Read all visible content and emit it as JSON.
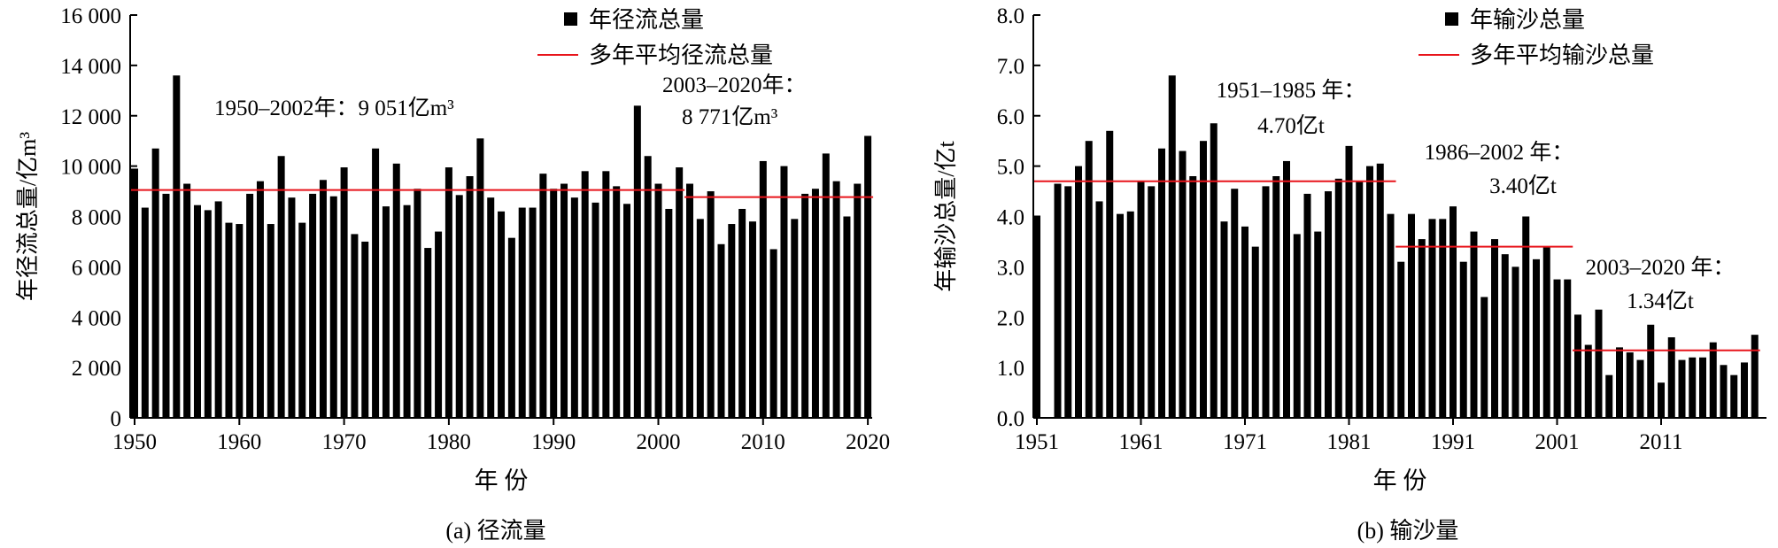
{
  "chart_data": [
    {
      "type": "bar",
      "caption": "(a) 径流量",
      "xlabel": "年 份",
      "ylabel": "年径流总量/亿m³",
      "ylim": [
        0,
        16000
      ],
      "yticks": [
        "0",
        "2 000",
        "4 000",
        "6 000",
        "8 000",
        "10 000",
        "12 000",
        "14 000",
        "16 000"
      ],
      "ytick_values": [
        0,
        2000,
        4000,
        6000,
        8000,
        10000,
        12000,
        14000,
        16000
      ],
      "xticks": [
        1950,
        1960,
        1970,
        1980,
        1990,
        2000,
        2010,
        2020
      ],
      "grid": false,
      "legend_placement": "top-right",
      "legend": {
        "bars": "年径流总量",
        "line": "多年平均径流总量"
      },
      "colors": {
        "bars": "#000000",
        "mean_line": "#e8141b"
      },
      "x": [
        1950,
        1951,
        1952,
        1953,
        1954,
        1955,
        1956,
        1957,
        1958,
        1959,
        1960,
        1961,
        1962,
        1963,
        1964,
        1965,
        1966,
        1967,
        1968,
        1969,
        1970,
        1971,
        1972,
        1973,
        1974,
        1975,
        1976,
        1977,
        1978,
        1979,
        1980,
        1981,
        1982,
        1983,
        1984,
        1985,
        1986,
        1987,
        1988,
        1989,
        1990,
        1991,
        1992,
        1993,
        1994,
        1995,
        1996,
        1997,
        1998,
        1999,
        2000,
        2001,
        2002,
        2003,
        2004,
        2005,
        2006,
        2007,
        2008,
        2009,
        2010,
        2011,
        2012,
        2013,
        2014,
        2015,
        2016,
        2017,
        2018,
        2019,
        2020
      ],
      "values": [
        9900,
        8350,
        10700,
        8900,
        13600,
        9300,
        8450,
        8250,
        8600,
        7750,
        7700,
        8900,
        9400,
        7700,
        10400,
        8750,
        7750,
        8900,
        9450,
        8800,
        9950,
        7300,
        7000,
        10700,
        8400,
        10100,
        8450,
        9100,
        6750,
        7400,
        9950,
        8850,
        9600,
        11100,
        8750,
        8200,
        7150,
        8350,
        8350,
        9700,
        9100,
        9300,
        8750,
        9800,
        8550,
        9800,
        9200,
        8500,
        12400,
        10400,
        9300,
        8300,
        9950,
        9300,
        7900,
        9000,
        6900,
        7700,
        8300,
        7800,
        10200,
        6700,
        10000,
        7900,
        8900,
        9100,
        10500,
        9400,
        8000,
        9300,
        11200
      ],
      "means": [
        {
          "from": 1950,
          "to": 2002,
          "value": 9051,
          "label1": "1950–2002年：9 051亿m³",
          "label2": ""
        },
        {
          "from": 2003,
          "to": 2020,
          "value": 8771,
          "label1": "2003–2020年：",
          "label2": "8 771亿m³"
        }
      ]
    },
    {
      "type": "bar",
      "caption": "(b) 输沙量",
      "xlabel": "年 份",
      "ylabel": "年输沙总量/亿t",
      "ylim": [
        0,
        8
      ],
      "yticks": [
        "0.0",
        "1.0",
        "2.0",
        "3.0",
        "4.0",
        "5.0",
        "6.0",
        "7.0",
        "8.0"
      ],
      "ytick_values": [
        0,
        1,
        2,
        3,
        4,
        5,
        6,
        7,
        8
      ],
      "xticks": [
        1951,
        1961,
        1971,
        1981,
        1991,
        2001,
        2011
      ],
      "grid": false,
      "legend_placement": "top-right",
      "legend": {
        "bars": "年输沙总量",
        "line": "多年平均输沙总量"
      },
      "colors": {
        "bars": "#000000",
        "mean_line": "#e8141b"
      },
      "x": [
        1951,
        1953,
        1954,
        1955,
        1956,
        1957,
        1958,
        1959,
        1960,
        1961,
        1962,
        1963,
        1964,
        1965,
        1966,
        1967,
        1968,
        1969,
        1970,
        1971,
        1972,
        1973,
        1974,
        1975,
        1976,
        1977,
        1978,
        1979,
        1980,
        1981,
        1982,
        1983,
        1984,
        1985,
        1986,
        1987,
        1988,
        1989,
        1990,
        1991,
        1992,
        1993,
        1994,
        1995,
        1996,
        1997,
        1998,
        1999,
        2000,
        2001,
        2002,
        2003,
        2004,
        2005,
        2006,
        2007,
        2008,
        2009,
        2010,
        2011,
        2012,
        2013,
        2014,
        2015,
        2016,
        2017,
        2018,
        2019,
        2020
      ],
      "values": [
        4.0,
        4.65,
        4.6,
        5.0,
        5.5,
        4.3,
        5.7,
        4.05,
        4.1,
        4.7,
        4.6,
        5.35,
        6.8,
        5.3,
        4.8,
        5.5,
        5.85,
        3.9,
        4.55,
        3.8,
        3.4,
        4.6,
        4.8,
        5.1,
        3.65,
        4.45,
        3.7,
        4.5,
        4.75,
        5.4,
        4.7,
        5.0,
        5.05,
        4.05,
        3.1,
        4.05,
        3.55,
        3.95,
        3.95,
        4.2,
        3.1,
        3.7,
        2.4,
        3.55,
        3.25,
        3.0,
        4.0,
        3.15,
        3.4,
        2.75,
        2.75,
        2.05,
        1.45,
        2.15,
        0.85,
        1.4,
        1.3,
        1.15,
        1.85,
        0.7,
        1.6,
        1.15,
        1.2,
        1.2,
        1.5,
        1.05,
        0.85,
        1.1,
        1.65
      ],
      "means": [
        {
          "from": 1951,
          "to": 1985,
          "value": 4.7,
          "label1": "1951–1985 年：",
          "label2": "4.70亿t"
        },
        {
          "from": 1986,
          "to": 2002,
          "value": 3.4,
          "label1": "1986–2002 年：",
          "label2": "3.40亿t"
        },
        {
          "from": 2003,
          "to": 2020,
          "value": 1.34,
          "label1": "2003–2020 年：",
          "label2": "1.34亿t"
        }
      ]
    }
  ]
}
